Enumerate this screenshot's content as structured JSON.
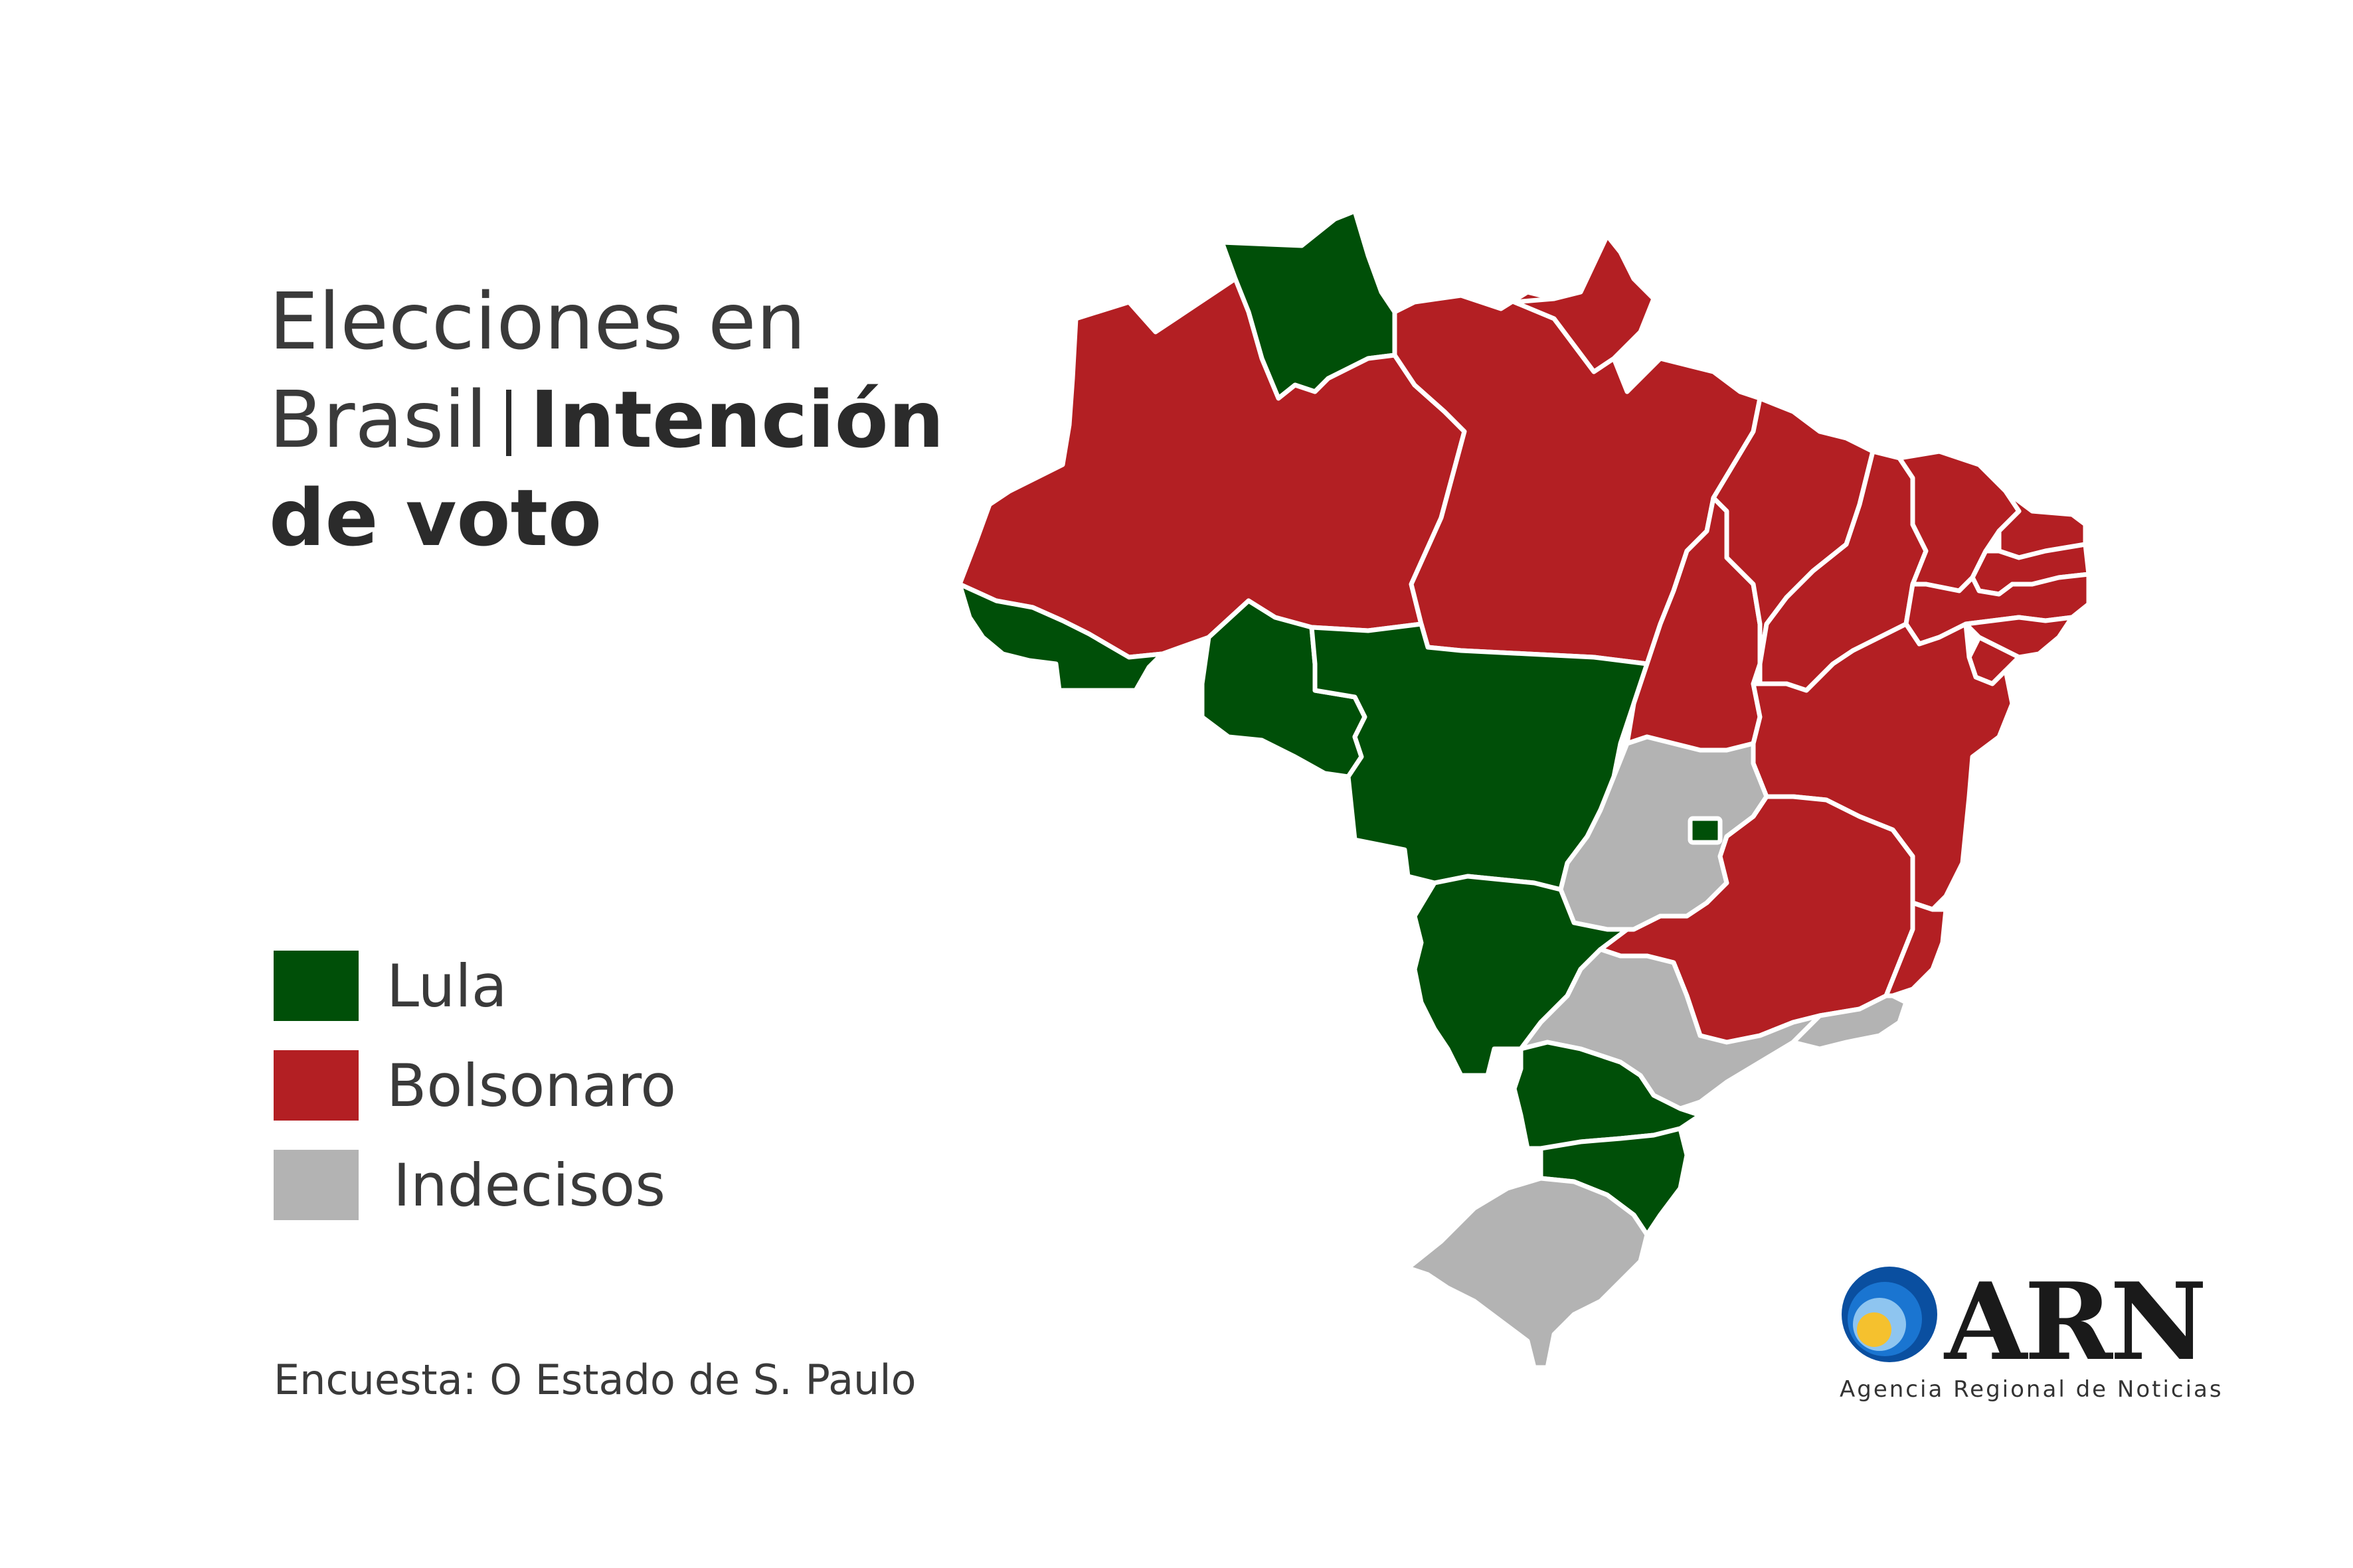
{
  "title": {
    "line1": "Elecciones en",
    "line2_regular": "Brasil",
    "line2_bold": "Intención",
    "line3_bold": "de voto"
  },
  "colors": {
    "lula": "#004f08",
    "bolsonaro": "#b31f23",
    "indecisos": "#b3b3b3"
  },
  "legend": [
    {
      "label": "Lula",
      "category": "lula"
    },
    {
      "label": "Bolsonaro",
      "category": "bolsonaro"
    },
    {
      "label": "Indecisos",
      "category": "indecisos"
    }
  ],
  "source": "Encuesta: O Estado de S. Paulo",
  "logo": {
    "text": "ARN",
    "subtitle": "Agencia Regional de Noticias"
  },
  "states": [
    {
      "id": "RR",
      "category": "lula"
    },
    {
      "id": "AM",
      "category": "bolsonaro"
    },
    {
      "id": "AC",
      "category": "lula"
    },
    {
      "id": "RO",
      "category": "lula"
    },
    {
      "id": "PA",
      "category": "bolsonaro"
    },
    {
      "id": "AP",
      "category": "bolsonaro"
    },
    {
      "id": "MT",
      "category": "lula"
    },
    {
      "id": "TO",
      "category": "bolsonaro"
    },
    {
      "id": "MA",
      "category": "bolsonaro"
    },
    {
      "id": "PI",
      "category": "bolsonaro"
    },
    {
      "id": "CE",
      "category": "bolsonaro"
    },
    {
      "id": "RN",
      "category": "bolsonaro"
    },
    {
      "id": "PB",
      "category": "bolsonaro"
    },
    {
      "id": "PE",
      "category": "bolsonaro"
    },
    {
      "id": "AL",
      "category": "bolsonaro"
    },
    {
      "id": "SE",
      "category": "bolsonaro"
    },
    {
      "id": "BA",
      "category": "bolsonaro"
    },
    {
      "id": "GO",
      "category": "indecisos"
    },
    {
      "id": "DF",
      "category": "lula"
    },
    {
      "id": "MG",
      "category": "bolsonaro"
    },
    {
      "id": "ES",
      "category": "bolsonaro"
    },
    {
      "id": "MS",
      "category": "lula"
    },
    {
      "id": "SP",
      "category": "indecisos"
    },
    {
      "id": "RJ",
      "category": "indecisos"
    },
    {
      "id": "PR",
      "category": "lula"
    },
    {
      "id": "SC",
      "category": "lula"
    },
    {
      "id": "RS",
      "category": "indecisos"
    }
  ]
}
